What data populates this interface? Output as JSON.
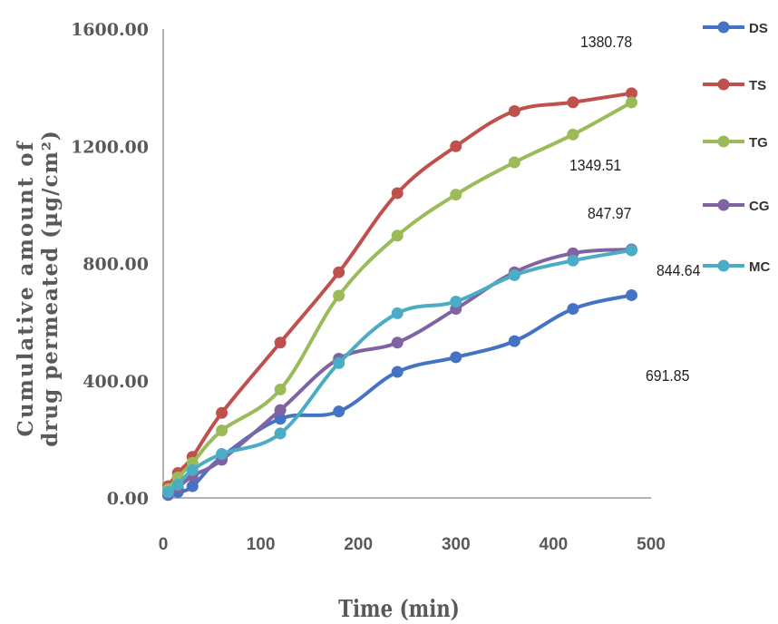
{
  "chart_data": {
    "type": "line",
    "xlabel": "Time (min)",
    "ylabel_line1": "Cumulative amount of",
    "ylabel_line2": "drug permeated (µg/cm²)",
    "xlim": [
      0,
      500
    ],
    "ylim": [
      0,
      1600
    ],
    "x_ticks": [
      0,
      100,
      200,
      300,
      400,
      500
    ],
    "y_ticks": [
      0,
      400,
      800,
      1200,
      1600
    ],
    "x_tick_labels": [
      "0",
      "100",
      "200",
      "300",
      "400",
      "500"
    ],
    "y_tick_labels": [
      "0.00",
      "400.00",
      "800.00",
      "1200.00",
      "1600.00"
    ],
    "legend_position": "right",
    "x": [
      5,
      15,
      30,
      60,
      120,
      180,
      240,
      300,
      360,
      420,
      480
    ],
    "series": [
      {
        "name": "DS",
        "color": "#4472C4",
        "values": [
          10,
          20,
          40,
          140,
          270,
          295,
          430,
          480,
          535,
          645,
          691.85
        ]
      },
      {
        "name": "TS",
        "color": "#C0504D",
        "values": [
          40,
          85,
          140,
          290,
          530,
          770,
          1040,
          1200,
          1320,
          1350,
          1380.78
        ]
      },
      {
        "name": "TG",
        "color": "#9BBB59",
        "values": [
          30,
          70,
          120,
          230,
          370,
          690,
          895,
          1035,
          1145,
          1240,
          1349.51
        ]
      },
      {
        "name": "CG",
        "color": "#8064A2",
        "values": [
          15,
          35,
          75,
          130,
          300,
          475,
          530,
          645,
          770,
          835,
          847.97
        ]
      },
      {
        "name": "MC",
        "color": "#4BACC6",
        "values": [
          20,
          45,
          95,
          150,
          220,
          460,
          630,
          670,
          760,
          810,
          844.64
        ]
      }
    ],
    "annotations": [
      {
        "text": "1380.78",
        "series": "TS"
      },
      {
        "text": "1349.51",
        "series": "TG"
      },
      {
        "text": "847.97",
        "series": "CG"
      },
      {
        "text": "844.64",
        "series": "MC"
      },
      {
        "text": "691.85",
        "series": "DS"
      }
    ]
  }
}
